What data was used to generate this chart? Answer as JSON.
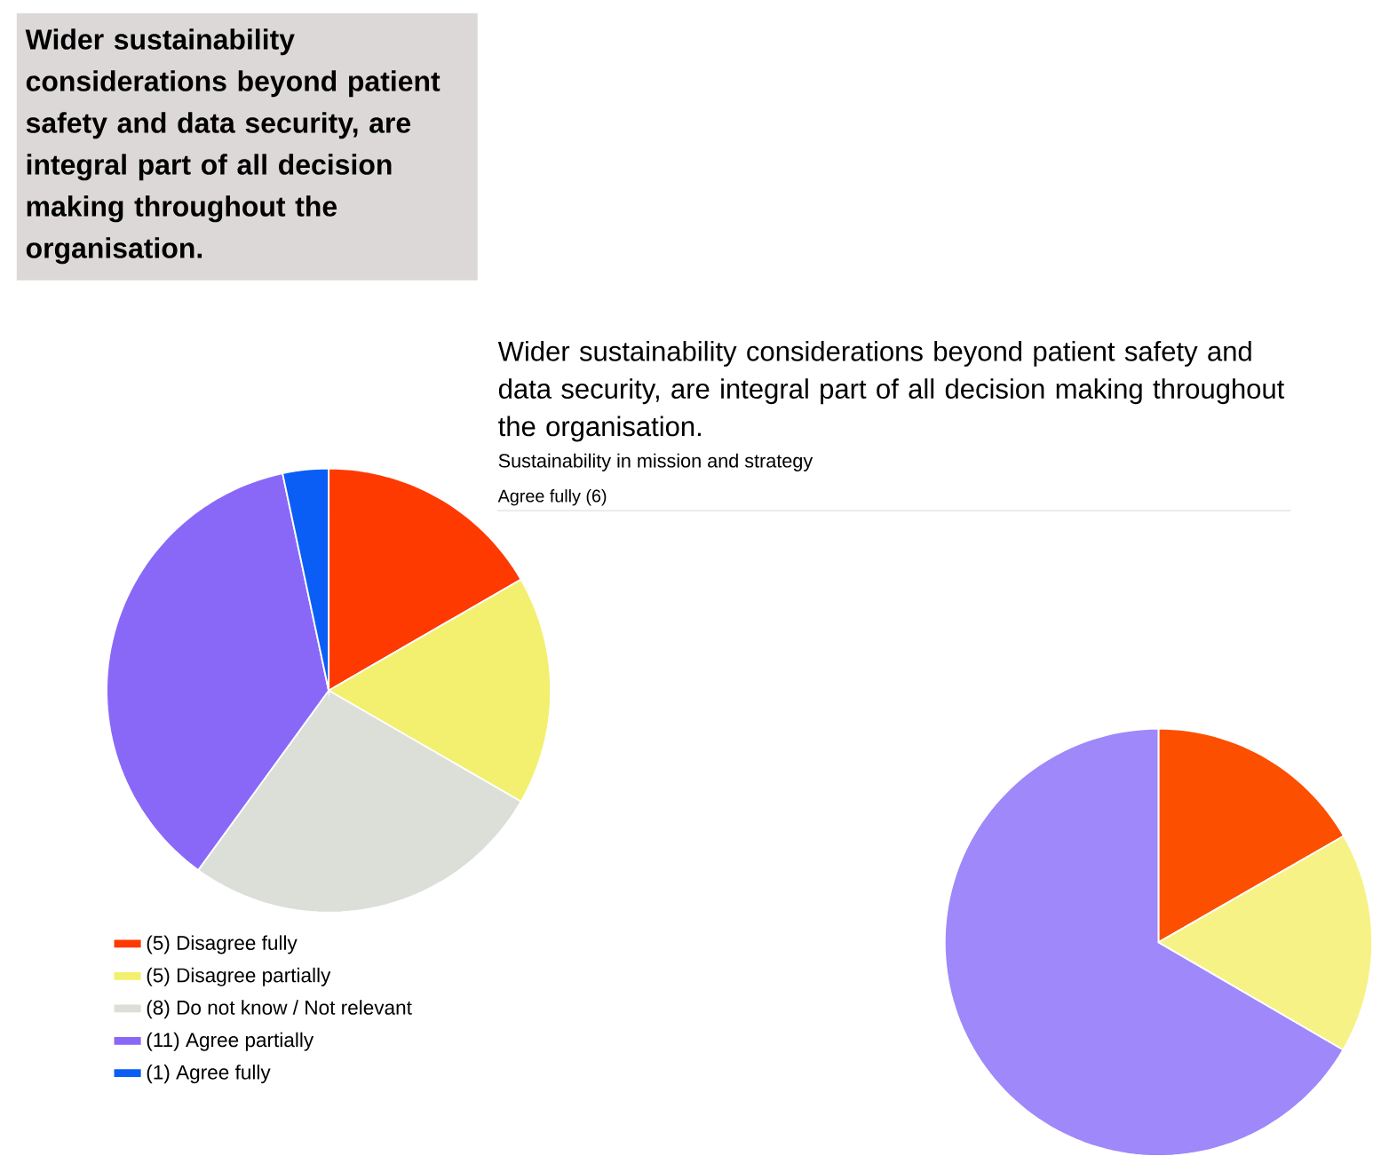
{
  "chart_data": [
    {
      "type": "pie",
      "title": "Wider sustainability considerations beyond patient safety and data security, are integral part of all decision making throughout the organisation.",
      "categories": [
        "(5) Disagree fully",
        "(5) Disagree partially",
        "(8) Do not know / Not relevant",
        "(11) Agree partially",
        "(1) Agree fully"
      ],
      "values": [
        5,
        5,
        8,
        11,
        1
      ],
      "colors": [
        "#fe3a01",
        "#f2f06e",
        "#dcdfd8",
        "#8968f8",
        "#0b5ef5"
      ],
      "legend": "bottom"
    },
    {
      "type": "pie",
      "title": "Wider sustainability considerations beyond patient safety and data security, are integral part of all decision making throughout the organisation.",
      "subtitle": "Sustainability in mission and strategy",
      "annotations": [
        "Agree fully (6)"
      ],
      "categories": [
        null,
        null,
        null
      ],
      "values": [
        16.7,
        16.7,
        66.6
      ],
      "colors": [
        "#fd4f00",
        "#f6f285",
        "#9e88fa"
      ]
    }
  ]
}
